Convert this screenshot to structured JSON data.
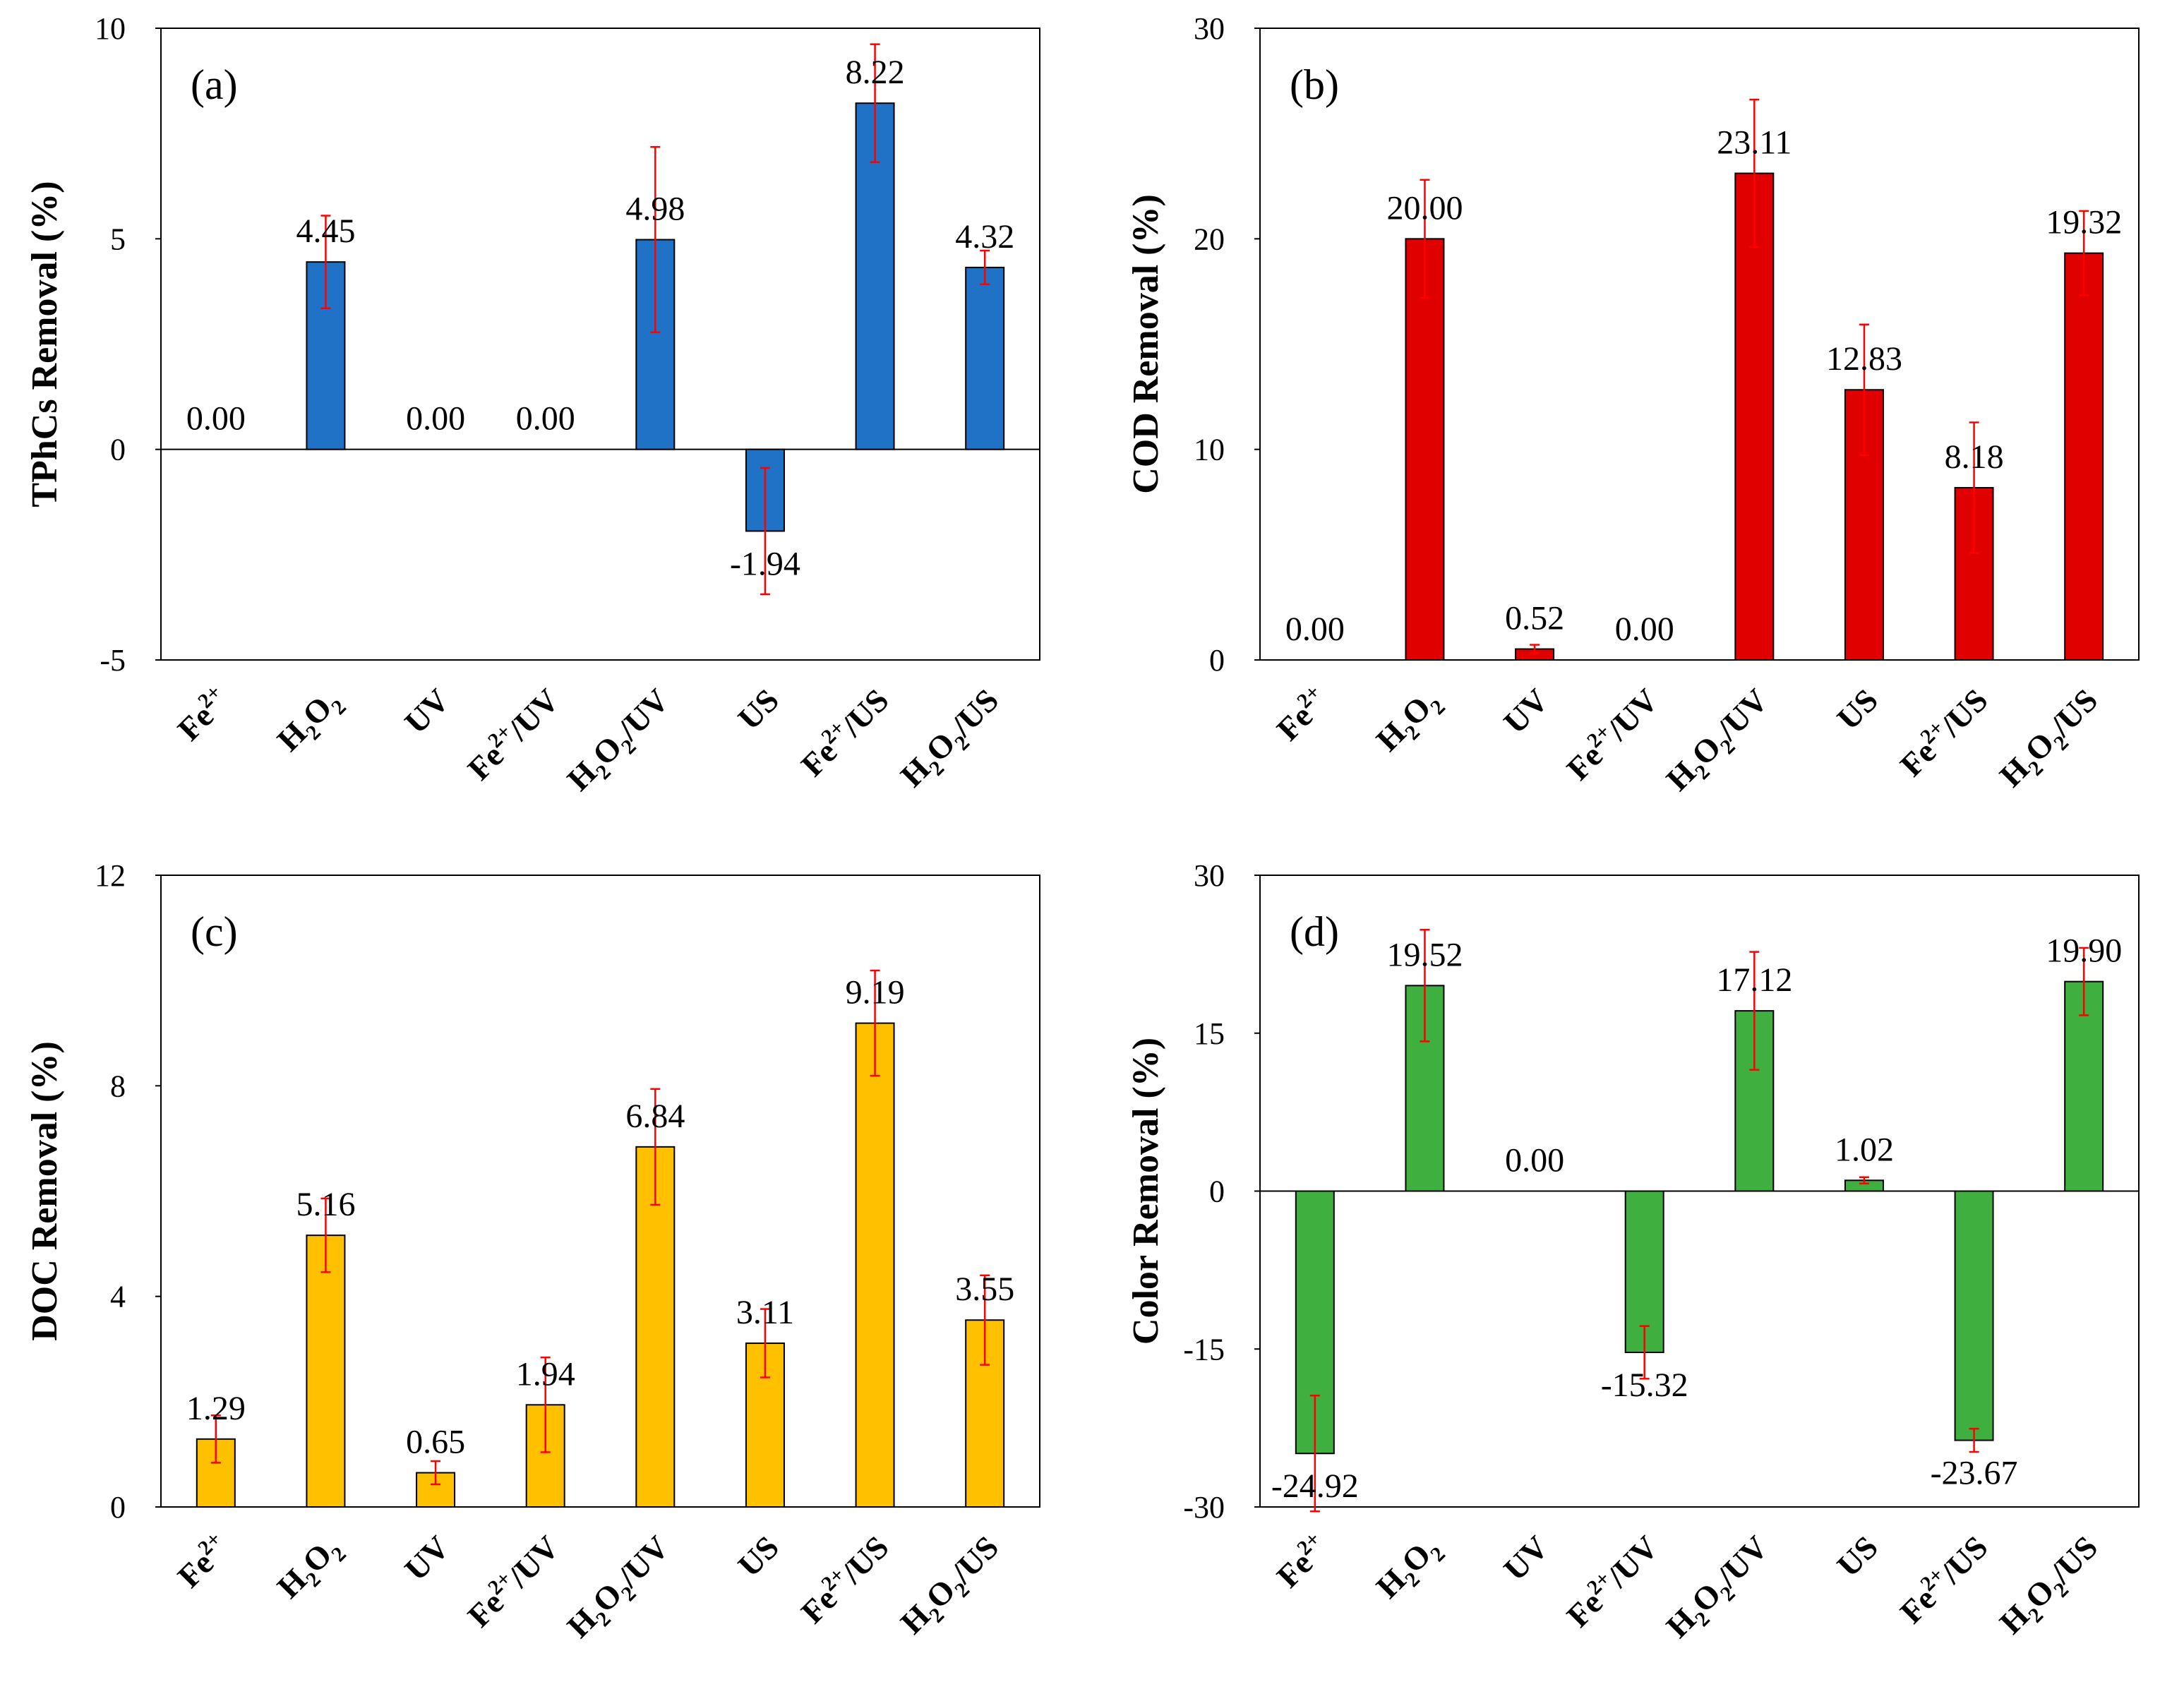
{
  "chart_data": [
    {
      "type": "bar",
      "panel": "(a)",
      "ylabel": "TPhCs Removal (%)",
      "ylim": [
        -5,
        10
      ],
      "yticks": [
        -5,
        0,
        5,
        10
      ],
      "bar_color": "#1f72c6",
      "categories": [
        "Fe2+",
        "H2O2",
        "UV",
        "Fe2+/UV",
        "H2O2/UV",
        "US",
        "Fe2+/US",
        "H2O2/US"
      ],
      "values": [
        0.0,
        4.45,
        0.0,
        0.0,
        4.98,
        -1.94,
        8.22,
        4.32
      ],
      "value_labels": [
        "0.00",
        "4.45",
        "0.00",
        "0.00",
        "4.98",
        "-1.94",
        "8.22",
        "4.32"
      ],
      "errors": [
        0,
        1.1,
        0,
        0,
        2.2,
        1.5,
        1.4,
        0.4
      ]
    },
    {
      "type": "bar",
      "panel": "(b)",
      "ylabel": "COD Removal (%)",
      "ylim": [
        0,
        30
      ],
      "yticks": [
        0,
        10,
        20,
        30
      ],
      "bar_color": "#e00000",
      "categories": [
        "Fe2+",
        "H2O2",
        "UV",
        "Fe2+/UV",
        "H2O2/UV",
        "US",
        "Fe2+/US",
        "H2O2/US"
      ],
      "values": [
        0.0,
        20.0,
        0.52,
        0.0,
        23.11,
        12.83,
        8.18,
        19.32
      ],
      "value_labels": [
        "0.00",
        "20.00",
        "0.52",
        "0.00",
        "23.11",
        "12.83",
        "8.18",
        "19.32"
      ],
      "errors": [
        0,
        2.8,
        0.2,
        0,
        3.5,
        3.1,
        3.1,
        2.0
      ]
    },
    {
      "type": "bar",
      "panel": "(c)",
      "ylabel": "DOC Removal (%)",
      "ylim": [
        0,
        12
      ],
      "yticks": [
        0,
        4,
        8,
        12
      ],
      "bar_color": "#ffc000",
      "categories": [
        "Fe2+",
        "H2O2",
        "UV",
        "Fe2+/UV",
        "H2O2/UV",
        "US",
        "Fe2+/US",
        "H2O2/US"
      ],
      "values": [
        1.29,
        5.16,
        0.65,
        1.94,
        6.84,
        3.11,
        9.19,
        3.55
      ],
      "value_labels": [
        "1.29",
        "5.16",
        "0.65",
        "1.94",
        "6.84",
        "3.11",
        "9.19",
        "3.55"
      ],
      "errors": [
        0.45,
        0.7,
        0.22,
        0.9,
        1.1,
        0.65,
        1.0,
        0.85
      ]
    },
    {
      "type": "bar",
      "panel": "(d)",
      "ylabel": "Color Removal (%)",
      "ylim": [
        -30,
        30
      ],
      "yticks": [
        -30,
        -15,
        0,
        15,
        30
      ],
      "bar_color": "#3faf3f",
      "categories": [
        "Fe2+",
        "H2O2",
        "UV",
        "Fe2+/UV",
        "H2O2/UV",
        "US",
        "Fe2+/US",
        "H2O2/US"
      ],
      "values": [
        -24.92,
        19.52,
        0.0,
        -15.32,
        17.12,
        1.02,
        -23.67,
        19.9
      ],
      "value_labels": [
        "-24.92",
        "19.52",
        "0.00",
        "-15.32",
        "17.12",
        "1.02",
        "-23.67",
        "19.90"
      ],
      "errors": [
        5.5,
        5.3,
        0,
        2.5,
        5.6,
        0.3,
        1.1,
        3.2
      ]
    }
  ],
  "category_parts": [
    {
      "base": "Fe",
      "sup": "2+",
      "rest": ""
    },
    {
      "h2o2": true,
      "rest": ""
    },
    {
      "base": "UV",
      "sup": "",
      "rest": ""
    },
    {
      "base": "Fe",
      "sup": "2+",
      "rest": "/UV"
    },
    {
      "h2o2": true,
      "rest": "/UV"
    },
    {
      "base": "US",
      "sup": "",
      "rest": ""
    },
    {
      "base": "Fe",
      "sup": "2+",
      "rest": "/US"
    },
    {
      "h2o2": true,
      "rest": "/US"
    }
  ],
  "error_color": "#ff0000"
}
